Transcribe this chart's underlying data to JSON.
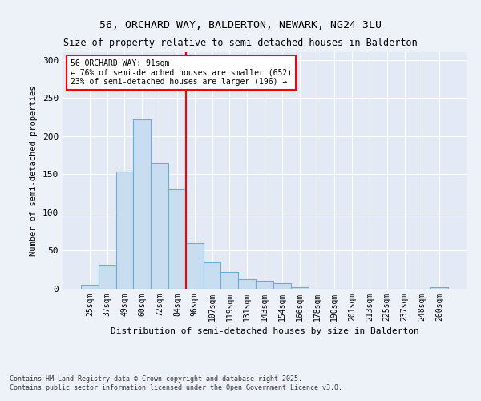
{
  "title1": "56, ORCHARD WAY, BALDERTON, NEWARK, NG24 3LU",
  "title2": "Size of property relative to semi-detached houses in Balderton",
  "xlabel": "Distribution of semi-detached houses by size in Balderton",
  "ylabel": "Number of semi-detached properties",
  "categories": [
    "25sqm",
    "37sqm",
    "49sqm",
    "60sqm",
    "72sqm",
    "84sqm",
    "96sqm",
    "107sqm",
    "119sqm",
    "131sqm",
    "143sqm",
    "154sqm",
    "166sqm",
    "178sqm",
    "190sqm",
    "201sqm",
    "213sqm",
    "225sqm",
    "237sqm",
    "248sqm",
    "260sqm"
  ],
  "values": [
    5,
    30,
    153,
    222,
    165,
    130,
    60,
    35,
    22,
    13,
    10,
    7,
    2,
    0,
    0,
    0,
    0,
    0,
    0,
    0,
    2
  ],
  "bar_color": "#c9ddf0",
  "bar_edge_color": "#6aaed6",
  "vline_x": 5.5,
  "vline_color": "red",
  "annotation_title": "56 ORCHARD WAY: 91sqm",
  "annotation_line1": "← 76% of semi-detached houses are smaller (652)",
  "annotation_line2": "23% of semi-detached houses are larger (196) →",
  "ylim": [
    0,
    310
  ],
  "yticks": [
    0,
    50,
    100,
    150,
    200,
    250,
    300
  ],
  "footnote1": "Contains HM Land Registry data © Crown copyright and database right 2025.",
  "footnote2": "Contains public sector information licensed under the Open Government Licence v3.0.",
  "bg_color": "#edf1f8",
  "plot_bg_color": "#e4eaf5"
}
